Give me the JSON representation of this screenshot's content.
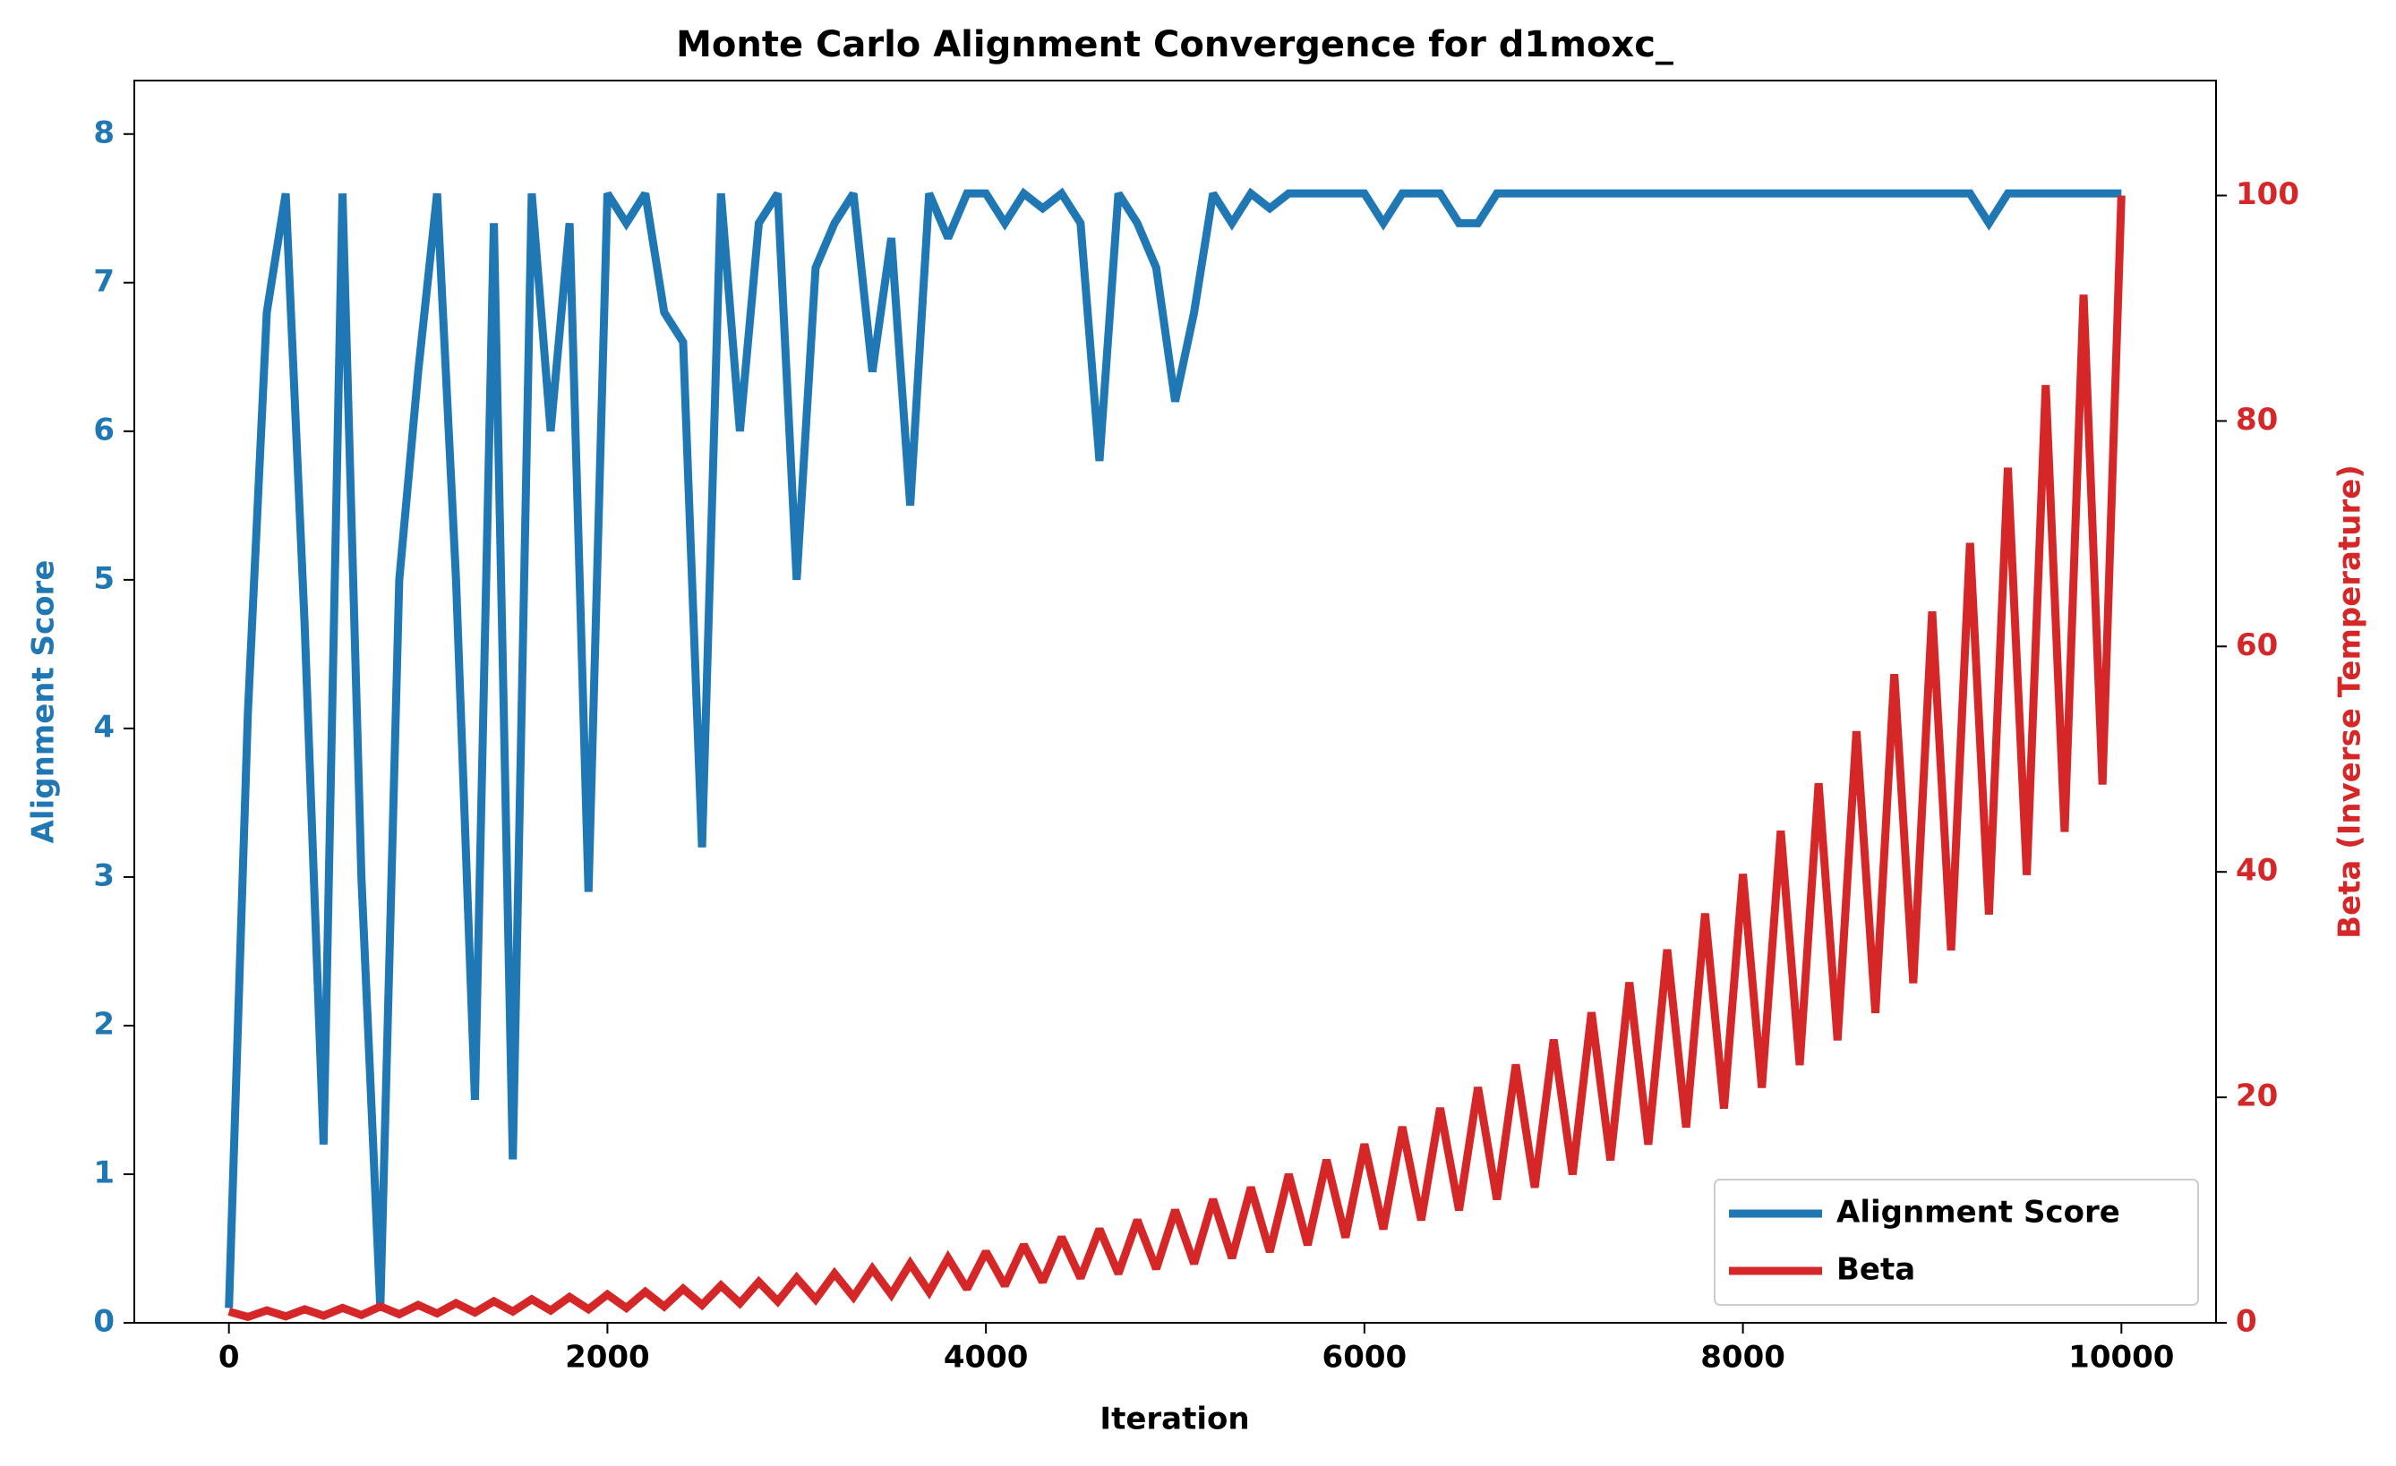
{
  "chart_data": {
    "type": "line",
    "title": "Monte Carlo Alignment Convergence for d1moxc_",
    "x_label": "Iteration",
    "y_label": "Alignment Score",
    "y2_label": "Beta (Inverse Temperature)",
    "x": [
      0,
      100,
      200,
      300,
      400,
      500,
      600,
      700,
      800,
      900,
      1000,
      1100,
      1200,
      1300,
      1400,
      1500,
      1600,
      1700,
      1800,
      1900,
      2000,
      2100,
      2200,
      2300,
      2400,
      2500,
      2600,
      2700,
      2800,
      2900,
      3000,
      3100,
      3200,
      3300,
      3400,
      3500,
      3600,
      3700,
      3800,
      3900,
      4000,
      4100,
      4200,
      4300,
      4400,
      4500,
      4600,
      4700,
      4800,
      4900,
      5000,
      5100,
      5200,
      5300,
      5400,
      5500,
      5600,
      5700,
      5800,
      5900,
      6000,
      6100,
      6200,
      6300,
      6400,
      6500,
      6600,
      6700,
      6800,
      6900,
      7000,
      7100,
      7200,
      7300,
      7400,
      7500,
      7600,
      7700,
      7800,
      7900,
      8000,
      8100,
      8200,
      8300,
      8400,
      8500,
      8600,
      8700,
      8800,
      8900,
      9000,
      9100,
      9200,
      9300,
      9400,
      9500,
      9600,
      9700,
      9800,
      9900,
      10000
    ],
    "series": [
      {
        "name": "Alignment Score",
        "color": "#1f77b4",
        "axis": "y",
        "values": [
          0.1,
          4.1,
          6.8,
          7.6,
          4.7,
          1.2,
          7.6,
          3.0,
          0.1,
          5.0,
          6.4,
          7.6,
          5.0,
          1.5,
          7.4,
          1.1,
          7.6,
          6.0,
          7.4,
          2.9,
          7.6,
          7.4,
          7.6,
          6.8,
          6.6,
          3.2,
          7.6,
          6.0,
          7.4,
          7.6,
          5.0,
          7.1,
          7.4,
          7.6,
          6.4,
          7.3,
          5.5,
          7.6,
          7.3,
          7.6,
          7.6,
          7.4,
          7.6,
          7.5,
          7.6,
          7.4,
          5.8,
          7.6,
          7.4,
          7.1,
          6.2,
          6.8,
          7.6,
          7.4,
          7.6,
          7.5,
          7.6,
          7.6,
          7.6,
          7.6,
          7.6,
          7.4,
          7.6,
          7.6,
          7.6,
          7.4,
          7.4,
          7.6,
          7.6,
          7.6,
          7.6,
          7.6,
          7.6,
          7.6,
          7.6,
          7.6,
          7.6,
          7.6,
          7.6,
          7.6,
          7.6,
          7.6,
          7.6,
          7.6,
          7.6,
          7.6,
          7.6,
          7.6,
          7.6,
          7.6,
          7.6,
          7.6,
          7.6,
          7.4,
          7.6,
          7.6,
          7.6,
          7.6,
          7.6,
          7.6,
          7.6
        ]
      },
      {
        "name": "Beta",
        "color": "#d62728",
        "axis": "y2",
        "values": [
          1,
          0.52,
          1.1,
          0.57,
          1.2,
          0.63,
          1.32,
          0.69,
          1.45,
          0.76,
          1.58,
          0.83,
          1.74,
          0.91,
          1.91,
          1.0,
          2.09,
          1.09,
          2.29,
          1.2,
          2.51,
          1.32,
          2.75,
          1.44,
          3.02,
          1.58,
          3.31,
          1.73,
          3.63,
          1.9,
          3.98,
          2.08,
          4.37,
          2.29,
          4.79,
          2.51,
          5.25,
          2.75,
          5.75,
          3.01,
          6.31,
          3.3,
          6.92,
          3.62,
          7.59,
          3.97,
          8.32,
          4.36,
          9.12,
          4.78,
          10,
          5.24,
          10.96,
          5.74,
          12.02,
          6.29,
          13.18,
          6.9,
          14.45,
          7.57,
          15.85,
          8.3,
          17.38,
          9.1,
          19.05,
          9.98,
          20.89,
          10.94,
          22.91,
          12.0,
          25.12,
          13.15,
          27.54,
          14.42,
          30.2,
          15.81,
          33.11,
          17.34,
          36.31,
          19.01,
          39.81,
          20.85,
          43.65,
          22.86,
          47.86,
          25.06,
          52.48,
          27.48,
          57.54,
          30.13,
          63.1,
          33.04,
          69.18,
          36.22,
          75.86,
          39.72,
          83.18,
          43.55,
          91.2,
          47.75,
          100
        ]
      }
    ],
    "xlim": [
      -500,
      10500
    ],
    "xticks": [
      0,
      2000,
      4000,
      6000,
      8000,
      10000
    ],
    "ylim": [
      0,
      8.36
    ],
    "yticks": [
      0,
      1,
      2,
      3,
      4,
      5,
      6,
      7,
      8
    ],
    "y2lim": [
      0,
      110.2
    ],
    "y2ticks": [
      0,
      20,
      40,
      60,
      80,
      100
    ],
    "legend": "lower right"
  }
}
